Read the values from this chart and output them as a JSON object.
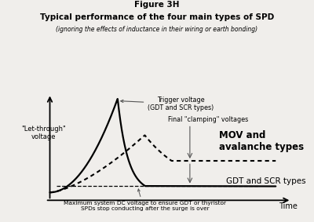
{
  "title_line1": "Figure 3H",
  "title_line2": "Typical performance of the four main types of SPD",
  "title_line3": "(ignoring the effects of inductance in their wiring or earth bonding)",
  "ylabel": "\"Let-through\"\nvoltage",
  "xlabel": "Time",
  "bg_color": "#f0eeeb",
  "annotation_trigger": "Trigger voltage\n(GDT and SCR types)",
  "annotation_clamping": "Final \"clamping\" voltages",
  "annotation_mov": "MOV and\navalanche types",
  "annotation_gdt": "GDT and SCR types",
  "annotation_dc": "Maximum system DC voltage to ensure GDT or thyristor\nSPDs stop conducting after the surge is over"
}
